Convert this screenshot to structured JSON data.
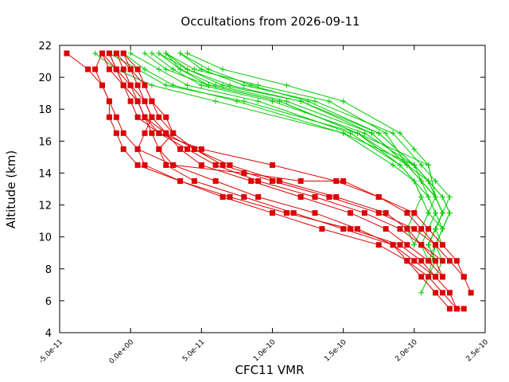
{
  "chart_data": {
    "type": "line",
    "title": "Occultations from 2026-09-11",
    "xlabel": "CFC11 VMR",
    "ylabel": "Altitude (km)",
    "xlim": [
      -5e-11,
      2.5e-10
    ],
    "ylim": [
      4,
      22
    ],
    "x_ticks": [
      -5e-11,
      0,
      5e-11,
      1e-10,
      1.5e-10,
      2e-10,
      2.5e-10
    ],
    "x_tick_labels": [
      "-5.0e-11",
      "0.0e+00",
      "5.0e-11",
      "1.0e-10",
      "1.5e-10",
      "2.0e-10",
      "2.5e-10"
    ],
    "y_ticks": [
      4,
      6,
      8,
      10,
      12,
      14,
      16,
      18,
      20,
      22
    ],
    "y_tick_labels": [
      "4",
      "6",
      "8",
      "10",
      "12",
      "14",
      "16",
      "18",
      "20",
      "22"
    ],
    "grid": false,
    "legend": "none",
    "colors": {
      "green_series": "#00cc00",
      "red_series": "#dd0000",
      "frame": "#000000"
    },
    "green_series": [
      {
        "x": [
          -2.5e-11,
          -1e-11,
          1.5e-11,
          6e-11,
          1.5e-10,
          2e-10,
          2.1e-10,
          2.15e-10,
          2.1e-10,
          2.05e-10,
          2.1e-10
        ],
        "y": [
          21.5,
          20.5,
          19.5,
          18.5,
          16.5,
          14.5,
          12.5,
          11.5,
          10.5,
          9.5,
          8.5
        ]
      },
      {
        "x": [
          -1.5e-11,
          5e-12,
          2.5e-11,
          8e-11,
          1.6e-10,
          2.1e-10,
          2.15e-10,
          2.2e-10,
          2.15e-10,
          2.1e-10
        ],
        "y": [
          21.5,
          20.5,
          19.5,
          18.5,
          16.5,
          14.5,
          12.5,
          11.5,
          10.5,
          9.5
        ]
      },
      {
        "x": [
          1.5e-11,
          3e-11,
          5e-11,
          1e-10,
          1.65e-10,
          2e-10,
          2.1e-10,
          2.15e-10,
          2.2e-10,
          2.15e-10,
          2.1e-10,
          2.15e-10,
          2.1e-10
        ],
        "y": [
          21.5,
          20.5,
          19.5,
          18.5,
          16.5,
          14.5,
          13.5,
          12.5,
          11.5,
          10.5,
          9.5,
          8.5,
          7.5
        ]
      },
      {
        "x": [
          2e-11,
          3.5e-11,
          6e-11,
          1.1e-10,
          1.7e-10,
          1.95e-10,
          2.05e-10,
          2.15e-10,
          2.2e-10,
          2.15e-10,
          2.1e-10
        ],
        "y": [
          21.5,
          20.5,
          19.5,
          18.5,
          16.5,
          14.5,
          13.5,
          12.5,
          11.5,
          10.5,
          9.5
        ]
      },
      {
        "x": [
          2.5e-11,
          4e-11,
          7e-11,
          1.2e-10,
          1.75e-10,
          2e-10,
          2.1e-10,
          2.2e-10,
          2.25e-10,
          2.2e-10,
          2.15e-10,
          2.2e-10,
          2.15e-10
        ],
        "y": [
          21.5,
          20.5,
          19.5,
          18.5,
          16.5,
          14.5,
          13.5,
          12.5,
          11.5,
          10.5,
          9.5,
          8.5,
          7.5
        ]
      },
      {
        "x": [
          3.5e-11,
          5e-11,
          8e-11,
          1.3e-10,
          1.85e-10,
          2.05e-10,
          2.15e-10,
          2.25e-10,
          2.2e-10,
          2.15e-10
        ],
        "y": [
          21.5,
          20.5,
          19.5,
          18.5,
          16.5,
          14.5,
          13.5,
          12.5,
          11.5,
          10.5
        ]
      },
      {
        "x": [
          4e-11,
          6.5e-11,
          1.1e-10,
          1.5e-10,
          1.9e-10,
          2e-10,
          2.1e-10,
          2.15e-10,
          2.1e-10,
          2.2e-10,
          2.15e-10,
          2.1e-10
        ],
        "y": [
          21.5,
          20.5,
          19.5,
          18.5,
          16.5,
          15.5,
          14.5,
          12.5,
          11.5,
          10.5,
          9.5,
          8.5
        ]
      },
      {
        "x": [
          1e-11,
          2.5e-11,
          5.5e-11,
          1.05e-10,
          1.6e-10,
          1.9e-10,
          2e-10,
          2.1e-10,
          2.15e-10,
          2.2e-10,
          2.15e-10,
          2.1e-10,
          2.05e-10
        ],
        "y": [
          21.5,
          20.5,
          19.5,
          18.5,
          16.5,
          14.5,
          13.5,
          12.5,
          11.5,
          10.5,
          9.5,
          7.5,
          6.5
        ]
      },
      {
        "x": [
          2.5e-11,
          4.5e-11,
          9e-11,
          1.4e-10,
          1.8e-10,
          1.95e-10,
          2.1e-10,
          2.15e-10,
          2.2e-10,
          2.15e-10
        ],
        "y": [
          21.5,
          20.5,
          19.5,
          18.5,
          16.5,
          14.5,
          13.5,
          12.5,
          11.5,
          10.5
        ]
      },
      {
        "x": [
          0,
          2e-11,
          4e-11,
          9e-11,
          1.55e-10,
          1.9e-10,
          2e-10,
          2.05e-10,
          2e-10,
          1.95e-10,
          2e-10
        ],
        "y": [
          21.5,
          20.5,
          19.5,
          18.5,
          16.5,
          14.5,
          13.5,
          12.5,
          11.5,
          10.5,
          9.5
        ]
      },
      {
        "x": [
          -5e-12,
          1e-11,
          3e-11,
          7.5e-11,
          1.5e-10,
          1.85e-10,
          2e-10,
          2.05e-10,
          2.1e-10,
          2.05e-10,
          2e-10
        ],
        "y": [
          21.5,
          20.5,
          19.5,
          18.5,
          16.5,
          14.5,
          13.5,
          12.5,
          11.5,
          10.5,
          9.5
        ]
      },
      {
        "x": [
          2e-11,
          4e-11,
          6.5e-11,
          1.2e-10,
          1.7e-10,
          1.95e-10,
          2.05e-10,
          2.15e-10,
          2.2e-10,
          2.15e-10,
          2.1e-10,
          2.15e-10
        ],
        "y": [
          21.5,
          20.5,
          19.5,
          18.5,
          16.5,
          14.5,
          13.5,
          12.5,
          11.5,
          10.5,
          9.5,
          8.5
        ]
      },
      {
        "x": [
          2.5e-11,
          3.5e-11,
          5.5e-11,
          1.05e-10,
          1.6e-10,
          1.95e-10,
          2.05e-10,
          2.15e-10,
          2.2e-10,
          2.15e-10,
          2.2e-10
        ],
        "y": [
          21.5,
          20.5,
          19.5,
          18.5,
          16.5,
          14.5,
          13.5,
          12.5,
          11.5,
          10.5,
          9.5
        ]
      },
      {
        "x": [
          3.5e-11,
          5.5e-11,
          8.5e-11,
          1.25e-10,
          1.75e-10,
          2e-10,
          2.1e-10,
          2.2e-10,
          2.25e-10,
          2.2e-10
        ],
        "y": [
          21.5,
          20.5,
          19.5,
          18.5,
          16.5,
          14.5,
          13.5,
          12.5,
          11.5,
          10.5
        ]
      }
    ],
    "red_series": [
      {
        "x": [
          -4.5e-11,
          -3e-11,
          -2e-11,
          -1.5e-11,
          -1e-11,
          -5e-12,
          5e-12,
          3e-11,
          8e-11,
          1.2e-10,
          1.5e-10,
          1.75e-10,
          2e-10,
          2.1e-10,
          2.2e-10,
          2.3e-10,
          2.35e-10,
          2.4e-10
        ],
        "y": [
          21.5,
          20.5,
          19.5,
          18.5,
          17.5,
          16.5,
          15.5,
          14.5,
          14.0,
          13.5,
          13.5,
          12.5,
          11.5,
          10.5,
          9.5,
          8.5,
          7.5,
          6.5
        ]
      },
      {
        "x": [
          -2e-11,
          -2.5e-11,
          -2e-11,
          -1.5e-11,
          -1.5e-11,
          -1e-11,
          -5e-12,
          5e-12,
          3.5e-11,
          7e-11,
          1.1e-10,
          1.55e-10,
          1.9e-10,
          2.05e-10,
          2.15e-10,
          2.25e-10,
          2.3e-10,
          2.35e-10
        ],
        "y": [
          21.5,
          20.5,
          19.5,
          18.5,
          17.5,
          16.5,
          15.5,
          14.5,
          13.5,
          12.5,
          11.5,
          10.5,
          9.5,
          8.5,
          7.5,
          6.5,
          5.5,
          5.5
        ]
      },
      {
        "x": [
          -1e-11,
          -5e-12,
          0,
          5e-12,
          1e-11,
          1.5e-11,
          2e-11,
          3e-11,
          6e-11,
          9e-11,
          1.3e-10,
          1.6e-10,
          1.85e-10,
          1.95e-10,
          2.05e-10,
          2.15e-10,
          2.25e-10
        ],
        "y": [
          21.5,
          20.5,
          19.5,
          18.5,
          17.5,
          16.5,
          15.5,
          14.5,
          13.5,
          12.5,
          11.5,
          10.5,
          9.5,
          8.5,
          7.5,
          6.5,
          5.5
        ]
      },
      {
        "x": [
          -5e-12,
          0,
          5e-12,
          1e-11,
          1.5e-11,
          1e-11,
          5e-12,
          1e-11,
          3.5e-11,
          6.5e-11,
          1e-10,
          1.35e-10,
          1.75e-10,
          1.95e-10,
          2.1e-10,
          2.2e-10,
          2.3e-10
        ],
        "y": [
          21.5,
          20.5,
          19.5,
          18.5,
          17.5,
          16.5,
          15.5,
          14.5,
          13.5,
          12.5,
          11.5,
          10.5,
          9.5,
          8.5,
          7.5,
          6.5,
          5.5
        ]
      },
      {
        "x": [
          -1e-11,
          0,
          1e-11,
          1.5e-11,
          2e-11,
          3e-11,
          4.5e-11,
          6.5e-11,
          1e-10,
          1.4e-10,
          1.75e-10,
          2e-10,
          2.15e-10,
          2.25e-10,
          2.35e-10
        ],
        "y": [
          21.5,
          20.5,
          19.5,
          18.5,
          17.5,
          16.5,
          15.5,
          14.5,
          13.5,
          12.5,
          11.5,
          10.5,
          9.5,
          8.5,
          7.5
        ]
      },
      {
        "x": [
          -1.5e-11,
          -1e-11,
          -5e-12,
          5e-12,
          1e-11,
          2e-11,
          4e-11,
          6e-11,
          9e-11,
          1.3e-10,
          1.65e-10,
          1.9e-10,
          2.05e-10,
          2.15e-10,
          2.2e-10
        ],
        "y": [
          21.5,
          20.5,
          19.5,
          18.5,
          17.5,
          16.5,
          15.5,
          14.5,
          13.5,
          12.5,
          11.5,
          10.5,
          9.5,
          8.5,
          7.5
        ]
      },
      {
        "x": [
          -2e-11,
          -1.5e-11,
          -5e-12,
          0,
          5e-12,
          2e-11,
          5e-11,
          1e-10,
          1.45e-10,
          1.75e-10,
          1.95e-10,
          2.05e-10,
          2.15e-10
        ],
        "y": [
          21.5,
          20.5,
          19.5,
          18.5,
          17.5,
          16.5,
          15.5,
          14.5,
          13.5,
          12.5,
          11.5,
          10.5,
          9.5
        ]
      },
      {
        "x": [
          -5e-12,
          5e-12,
          1e-11,
          1.5e-11,
          2.5e-11,
          3e-11,
          2e-11,
          2.5e-11,
          4.5e-11,
          8e-11,
          1.15e-10,
          1.5e-10,
          1.85e-10,
          2e-10,
          2.15e-10
        ],
        "y": [
          21.5,
          20.5,
          19.5,
          18.5,
          17.5,
          16.5,
          15.5,
          14.5,
          13.5,
          12.5,
          11.5,
          10.5,
          9.5,
          8.5,
          7.5
        ]
      },
      {
        "x": [
          -1.5e-11,
          -1e-11,
          0,
          1e-11,
          1.5e-11,
          2.5e-11,
          3.5e-11,
          5e-11,
          8.5e-11,
          1.2e-10,
          1.55e-10,
          1.8e-10,
          1.95e-10,
          2.1e-10,
          2.2e-10
        ],
        "y": [
          21.5,
          20.5,
          19.5,
          18.5,
          17.5,
          16.5,
          15.5,
          14.5,
          13.5,
          12.5,
          11.5,
          10.5,
          9.5,
          8.5,
          7.5
        ]
      },
      {
        "x": [
          -2e-11,
          -1e-11,
          -5e-12,
          5e-12,
          1e-11,
          2.5e-11,
          4.5e-11,
          7e-11,
          1.05e-10,
          1.45e-10,
          1.8e-10,
          1.95e-10,
          2.05e-10,
          2.2e-10
        ],
        "y": [
          21.5,
          20.5,
          19.5,
          18.5,
          17.5,
          16.5,
          15.5,
          14.5,
          13.5,
          12.5,
          11.5,
          10.5,
          9.5,
          8.5
        ]
      }
    ]
  }
}
